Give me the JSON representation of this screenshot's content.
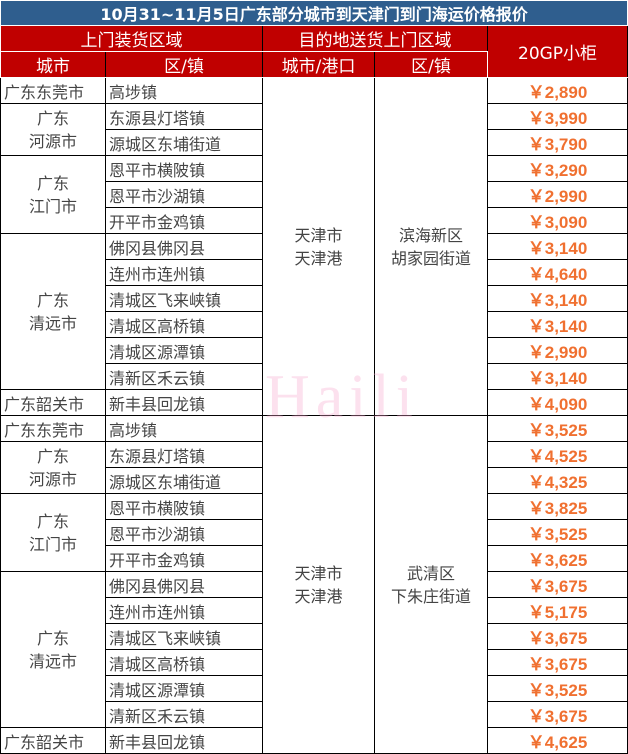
{
  "title": "10月31~11月5日广东部分城市到天津门到门海运价格报价",
  "header": {
    "pickup_area": "上门装货区域",
    "dest_area": "目的地送货上门区域",
    "price_col": "20GP小柜",
    "city": "城市",
    "district": "区/镇",
    "city_port": "城市/港口",
    "dest_district": "区/镇"
  },
  "watermark": "Haili",
  "groups": [
    {
      "dest_city": "天津市\n天津港",
      "dest_district": "滨海新区\n胡家园街道",
      "cities": [
        {
          "city": "广东东莞市",
          "rows": [
            {
              "district": "高埗镇",
              "price": "￥2,890"
            }
          ]
        },
        {
          "city": "广东\n河源市",
          "rows": [
            {
              "district": "东源县灯塔镇",
              "price": "￥3,990"
            },
            {
              "district": "源城区东埔街道",
              "price": "￥3,790"
            }
          ]
        },
        {
          "city": "广东\n江门市",
          "rows": [
            {
              "district": "恩平市横陂镇",
              "price": "￥3,290"
            },
            {
              "district": "恩平市沙湖镇",
              "price": "￥2,990"
            },
            {
              "district": "开平市金鸡镇",
              "price": "￥3,090"
            }
          ]
        },
        {
          "city": "广东\n清远市",
          "rows": [
            {
              "district": "佛冈县佛冈县",
              "price": "￥3,140"
            },
            {
              "district": "连州市连州镇",
              "price": "￥4,640"
            },
            {
              "district": "清城区飞来峡镇",
              "price": "￥3,140"
            },
            {
              "district": "清城区高桥镇",
              "price": "￥3,140"
            },
            {
              "district": "清城区源潭镇",
              "price": "￥2,990"
            },
            {
              "district": "清新区禾云镇",
              "price": "￥3,140"
            }
          ]
        },
        {
          "city": "广东韶关市",
          "rows": [
            {
              "district": "新丰县回龙镇",
              "price": "￥4,090"
            }
          ]
        }
      ]
    },
    {
      "dest_city": "天津市\n天津港",
      "dest_district": "武清区\n下朱庄街道",
      "cities": [
        {
          "city": "广东东莞市",
          "rows": [
            {
              "district": "高埗镇",
              "price": "￥3,525"
            }
          ]
        },
        {
          "city": "广东\n河源市",
          "rows": [
            {
              "district": "东源县灯塔镇",
              "price": "￥4,525"
            },
            {
              "district": "源城区东埔街道",
              "price": "￥4,325"
            }
          ]
        },
        {
          "city": "广东\n江门市",
          "rows": [
            {
              "district": "恩平市横陂镇",
              "price": "￥3,825"
            },
            {
              "district": "恩平市沙湖镇",
              "price": "￥3,525"
            },
            {
              "district": "开平市金鸡镇",
              "price": "￥3,625"
            }
          ]
        },
        {
          "city": "广东\n清远市",
          "rows": [
            {
              "district": "佛冈县佛冈县",
              "price": "￥3,675"
            },
            {
              "district": "连州市连州镇",
              "price": "￥5,175"
            },
            {
              "district": "清城区飞来峡镇",
              "price": "￥3,675"
            },
            {
              "district": "清城区高桥镇",
              "price": "￥3,675"
            },
            {
              "district": "清城区源潭镇",
              "price": "￥3,525"
            },
            {
              "district": "清新区禾云镇",
              "price": "￥3,675"
            }
          ]
        },
        {
          "city": "广东韶关市",
          "rows": [
            {
              "district": "新丰县回龙镇",
              "price": "￥4,625"
            }
          ]
        }
      ]
    }
  ]
}
